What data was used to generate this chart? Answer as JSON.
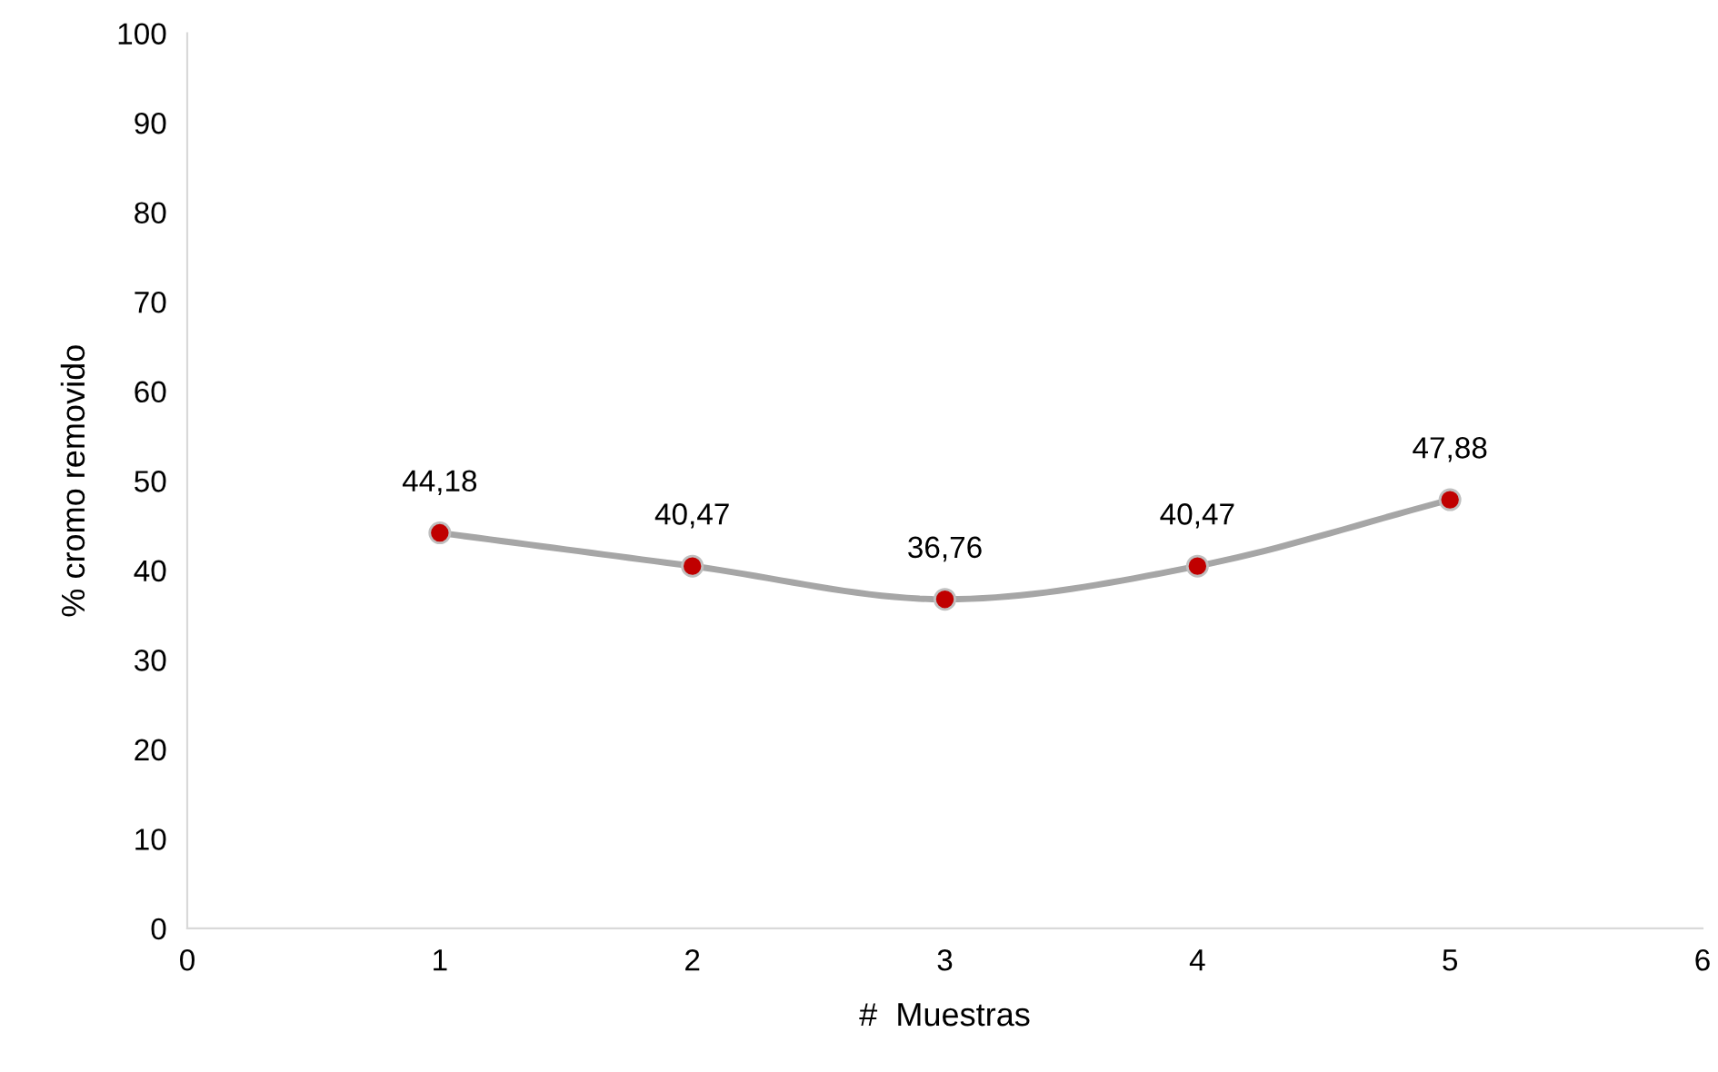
{
  "chart_data": {
    "type": "line",
    "xlabel": "#  Muestras",
    "ylabel": "% cromo removido",
    "x": [
      1,
      2,
      3,
      4,
      5
    ],
    "series": [
      {
        "color": "#a6a6a6",
        "colors": [
          "#c00000",
          "#c00000",
          "#c00000",
          "#c00000",
          "#c00000"
        ],
        "values": [
          44.18,
          40.47,
          36.76,
          40.47,
          47.88
        ],
        "value_labels": [
          "44,18",
          "40,47",
          "36,76",
          "40,47",
          "47,88"
        ]
      }
    ],
    "xlim": [
      0,
      6
    ],
    "xticks": [
      0,
      1,
      2,
      3,
      4,
      5,
      6
    ],
    "ylim": [
      0,
      100
    ],
    "yticks": [
      0,
      10,
      20,
      30,
      40,
      50,
      60,
      70,
      80,
      90,
      100
    ],
    "marker": "circle",
    "line_style": "solid",
    "grid": false
  }
}
